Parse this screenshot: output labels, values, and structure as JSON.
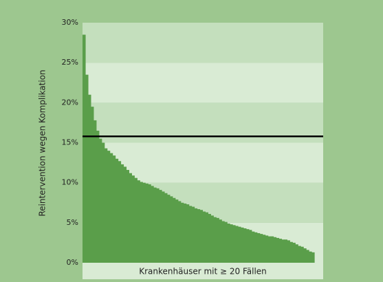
{
  "chart_data": {
    "type": "bar",
    "x_label": "Krankenhäuser mit ≥ 20 Fällen",
    "y_label": "Reintervention wegen Komplikation",
    "categories": [
      null,
      null,
      null,
      null,
      null,
      null,
      null,
      null,
      null,
      null,
      null,
      null,
      null,
      null,
      null,
      null,
      null,
      null,
      null,
      null,
      null,
      null,
      null,
      null,
      null,
      null,
      null,
      null,
      null,
      null,
      null,
      null,
      null,
      null,
      null,
      null,
      null,
      null,
      null,
      null,
      null,
      null,
      null,
      null,
      null,
      null,
      null,
      null,
      null,
      null,
      null,
      null,
      null,
      null,
      null,
      null,
      null,
      null,
      null,
      null,
      null,
      null,
      null,
      null,
      null,
      null,
      null,
      null,
      null,
      null,
      null,
      null,
      null,
      null,
      null,
      null,
      null,
      null,
      null,
      null,
      null,
      null,
      null,
      null,
      null
    ],
    "values": [
      28.5,
      23.5,
      21,
      19.5,
      17.8,
      16.5,
      15.5,
      15,
      14.3,
      14,
      13.7,
      13.4,
      13,
      12.7,
      12.3,
      12,
      11.6,
      11.2,
      10.9,
      10.6,
      10.3,
      10.1,
      10,
      9.9,
      9.8,
      9.6,
      9.4,
      9.3,
      9.1,
      8.9,
      8.7,
      8.5,
      8.3,
      8.1,
      7.9,
      7.7,
      7.5,
      7.4,
      7.3,
      7.1,
      7,
      6.8,
      6.7,
      6.6,
      6.4,
      6.3,
      6.1,
      5.9,
      5.7,
      5.6,
      5.4,
      5.2,
      5.1,
      4.9,
      4.8,
      4.7,
      4.6,
      4.5,
      4.4,
      4.3,
      4.2,
      4.1,
      3.9,
      3.8,
      3.7,
      3.6,
      3.5,
      3.4,
      3.3,
      3.3,
      3.2,
      3.1,
      3.0,
      2.9,
      2.9,
      2.8,
      2.6,
      2.5,
      2.3,
      2.1,
      2.0,
      1.8,
      1.6,
      1.4,
      1.3
    ],
    "color": "#5a9e4a",
    "reference_line": 15.8,
    "reference_color": "#000000",
    "ylim": [
      0,
      30
    ],
    "yticks": [
      {
        "value": 0,
        "label": "0%"
      },
      {
        "value": 5,
        "label": "5%"
      },
      {
        "value": 10,
        "label": "10%"
      },
      {
        "value": 15,
        "label": "15%"
      },
      {
        "value": 20,
        "label": "20%"
      },
      {
        "value": 25,
        "label": "25%"
      },
      {
        "value": 30,
        "label": "30%"
      }
    ],
    "grid": true,
    "band_colors": [
      "#d9ebd4",
      "#c4dfbd"
    ]
  }
}
